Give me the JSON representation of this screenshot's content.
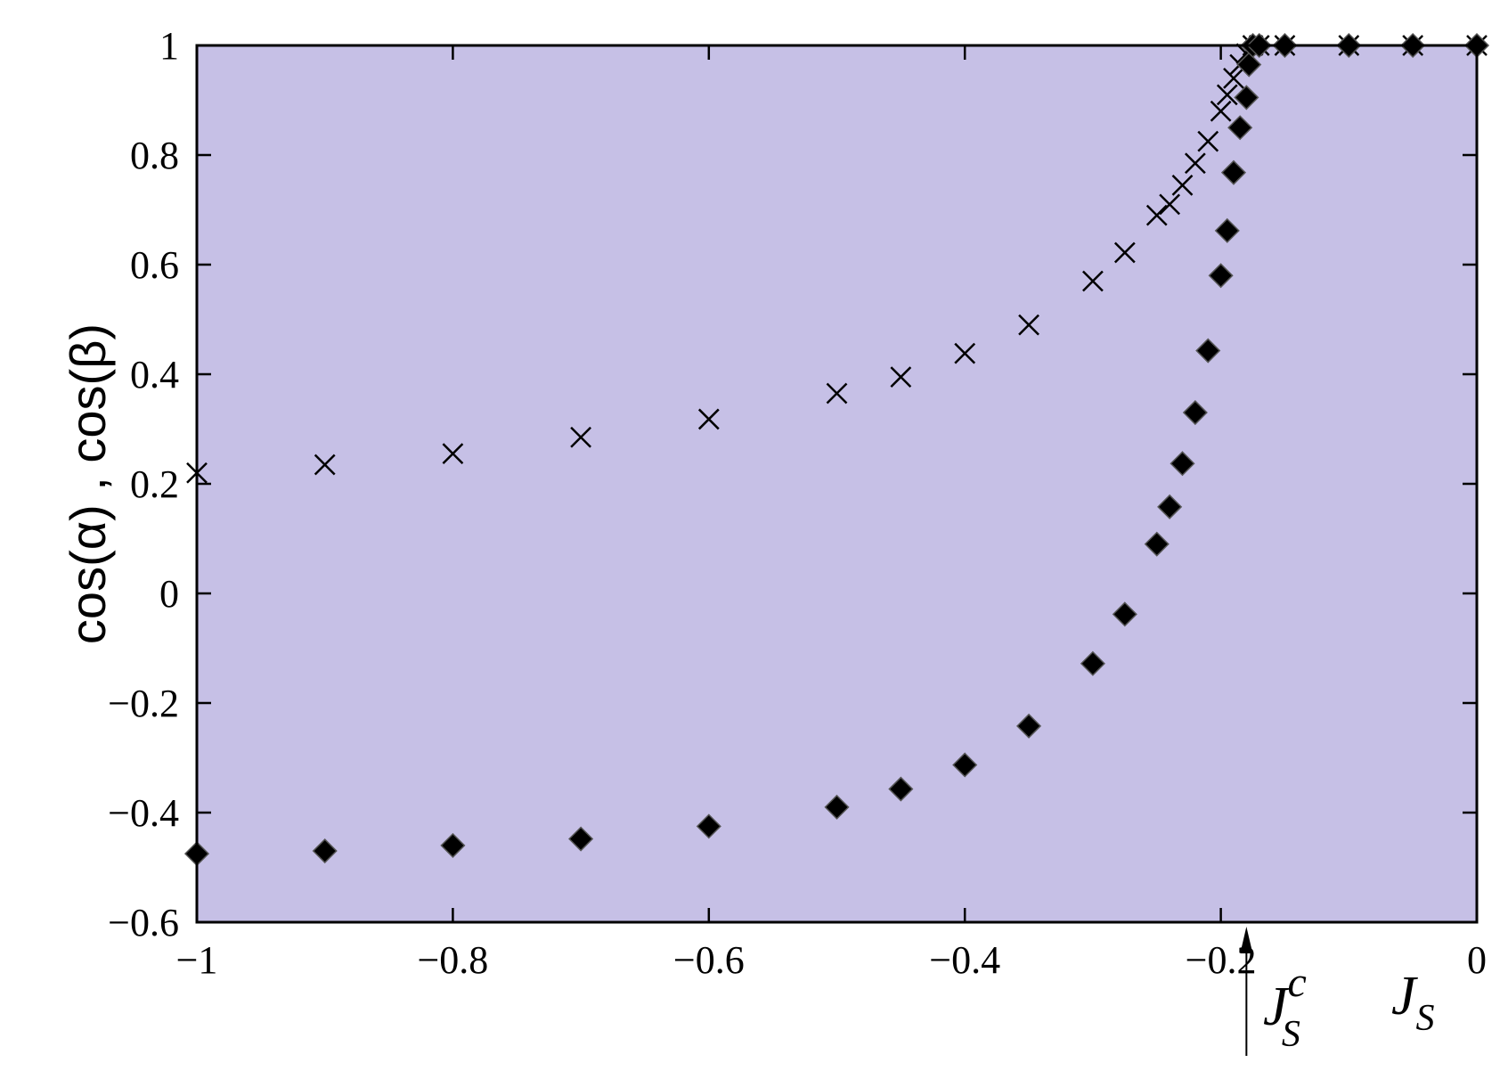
{
  "chart_data": {
    "type": "scatter",
    "title": "",
    "xlabel": "",
    "ylabel": "cos(α) , cos(β)",
    "xlim": [
      -1,
      0
    ],
    "ylim": [
      -0.6,
      1
    ],
    "xticks": [
      -1,
      -0.8,
      -0.6,
      -0.4,
      -0.2,
      0
    ],
    "xtick_labels": [
      "−1",
      "−0.8",
      "−0.6",
      "−0.4",
      "−0.2",
      "0"
    ],
    "yticks": [
      -0.6,
      -0.4,
      -0.2,
      0,
      0.2,
      0.4,
      0.6,
      0.8,
      1
    ],
    "ytick_labels": [
      "−0.6",
      "−0.4",
      "−0.2",
      "0",
      "0.2",
      "0.4",
      "0.6",
      "0.8",
      "1"
    ],
    "grid": false,
    "plot_background": "#c6c0e6",
    "series": [
      {
        "marker": "cross",
        "color": "#000000",
        "x": [
          -1,
          -0.9,
          -0.8,
          -0.7,
          -0.6,
          -0.5,
          -0.45,
          -0.4,
          -0.35,
          -0.3,
          -0.275,
          -0.25,
          -0.24,
          -0.23,
          -0.22,
          -0.21,
          -0.2,
          -0.195,
          -0.19,
          -0.185,
          -0.18,
          -0.175,
          -0.17,
          -0.15,
          -0.1,
          -0.05,
          0
        ],
        "y": [
          0.22,
          0.235,
          0.255,
          0.285,
          0.318,
          0.365,
          0.395,
          0.438,
          0.49,
          0.57,
          0.622,
          0.69,
          0.71,
          0.745,
          0.785,
          0.825,
          0.88,
          0.91,
          0.94,
          0.965,
          0.985,
          1.0,
          1.0,
          1.0,
          1.0,
          1.0,
          1.0
        ]
      },
      {
        "marker": "diamond",
        "color": "#000000",
        "x": [
          -1,
          -0.9,
          -0.8,
          -0.7,
          -0.6,
          -0.5,
          -0.45,
          -0.4,
          -0.35,
          -0.3,
          -0.275,
          -0.25,
          -0.24,
          -0.23,
          -0.22,
          -0.21,
          -0.2,
          -0.195,
          -0.19,
          -0.185,
          -0.18,
          -0.178,
          -0.175,
          -0.17,
          -0.15,
          -0.1,
          -0.05,
          0
        ],
        "y": [
          -0.475,
          -0.47,
          -0.46,
          -0.448,
          -0.425,
          -0.39,
          -0.357,
          -0.313,
          -0.242,
          -0.128,
          -0.038,
          0.09,
          0.158,
          0.237,
          0.33,
          0.443,
          0.58,
          0.662,
          0.768,
          0.85,
          0.905,
          0.965,
          1.0,
          1.0,
          1.0,
          1.0,
          1.0,
          1.0
        ]
      }
    ],
    "annotations": [
      {
        "text": "J",
        "subscript": "S",
        "superscript": "c",
        "points_to_x": -0.18
      },
      {
        "text": "J",
        "subscript": "S"
      }
    ]
  }
}
